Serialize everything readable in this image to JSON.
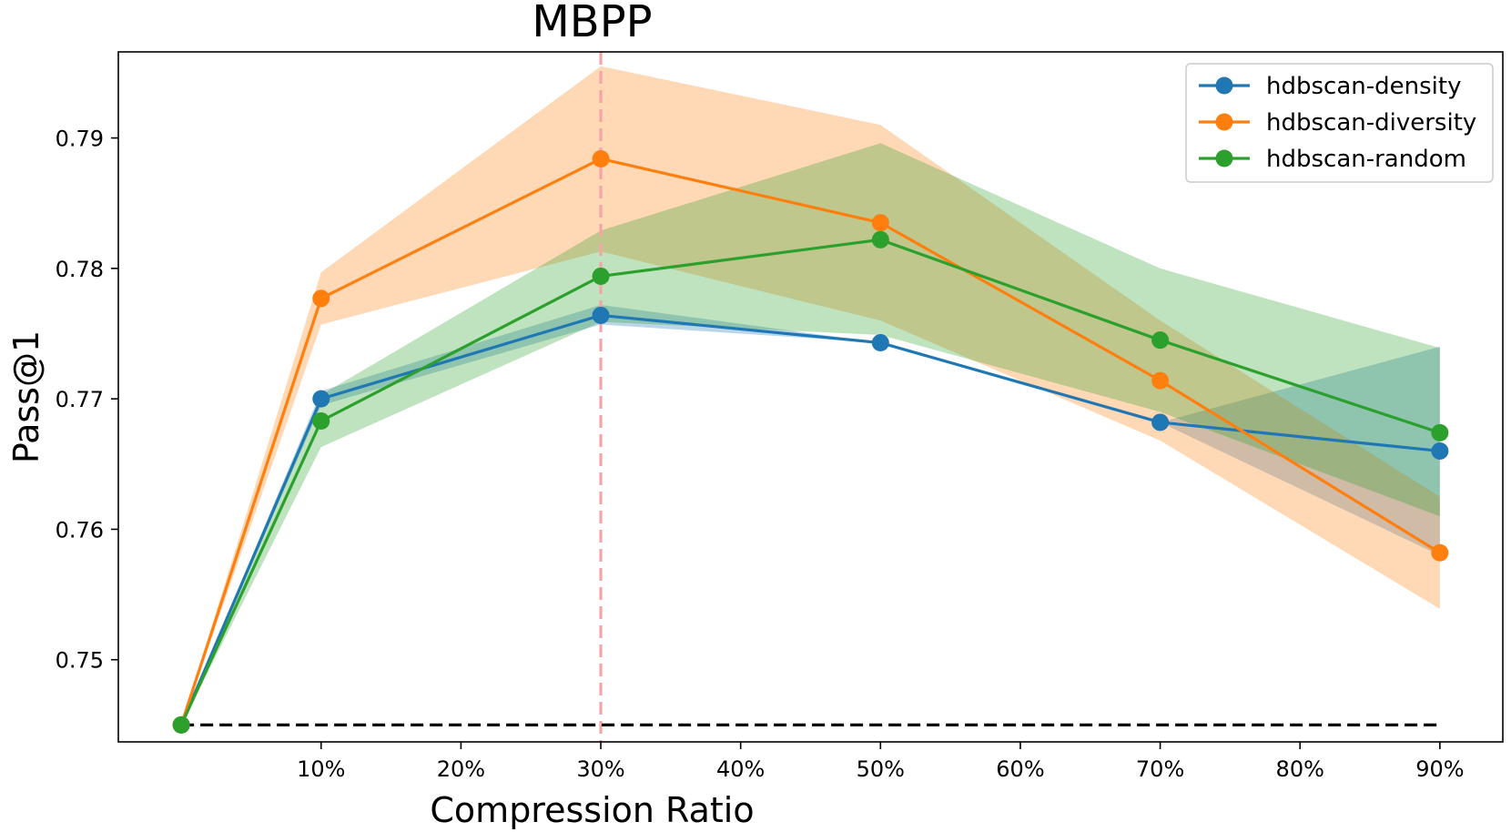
{
  "chart_data": {
    "type": "line",
    "title": "MBPP",
    "xlabel": "Compression Ratio",
    "ylabel": "Pass@1",
    "x": [
      0,
      10,
      30,
      50,
      70,
      90
    ],
    "xlim": [
      -4.5,
      94.5
    ],
    "ylim": [
      0.7437,
      0.7966
    ],
    "x_ticks": [
      {
        "value": 10,
        "label": "10%"
      },
      {
        "value": 20,
        "label": "20%"
      },
      {
        "value": 30,
        "label": "30%"
      },
      {
        "value": 40,
        "label": "40%"
      },
      {
        "value": 50,
        "label": "50%"
      },
      {
        "value": 60,
        "label": "60%"
      },
      {
        "value": 70,
        "label": "70%"
      },
      {
        "value": 80,
        "label": "80%"
      },
      {
        "value": 90,
        "label": "90%"
      }
    ],
    "y_ticks": [
      {
        "value": 0.75,
        "label": "0.75"
      },
      {
        "value": 0.76,
        "label": "0.76"
      },
      {
        "value": 0.77,
        "label": "0.77"
      },
      {
        "value": 0.78,
        "label": "0.78"
      },
      {
        "value": 0.79,
        "label": "0.79"
      }
    ],
    "baseline": {
      "value": 0.745,
      "x_range": [
        0,
        90
      ],
      "color": "#000000",
      "style": "dashed"
    },
    "vline": {
      "value": 30,
      "color": "#f4a6a6",
      "style": "dashed"
    },
    "legend_position": "top-right",
    "series": [
      {
        "name": "hdbscan-density",
        "color": "#1f77b4",
        "values": [
          0.745,
          0.77,
          0.7764,
          0.7743,
          0.7682,
          0.766
        ],
        "lower": [
          0.745,
          0.7695,
          0.7757,
          0.7743,
          0.7682,
          0.758
        ],
        "upper": [
          0.745,
          0.7706,
          0.7772,
          0.7743,
          0.7682,
          0.774
        ]
      },
      {
        "name": "hdbscan-diversity",
        "color": "#ff7f0e",
        "values": [
          0.745,
          0.7777,
          0.7884,
          0.7835,
          0.7714,
          0.7582
        ],
        "lower": [
          0.745,
          0.7757,
          0.7813,
          0.776,
          0.7668,
          0.7539
        ],
        "upper": [
          0.745,
          0.7797,
          0.7955,
          0.791,
          0.776,
          0.7625
        ]
      },
      {
        "name": "hdbscan-random",
        "color": "#2ca02c",
        "values": [
          0.745,
          0.7683,
          0.7794,
          0.7822,
          0.7745,
          0.7674
        ],
        "lower": [
          0.745,
          0.7663,
          0.7759,
          0.7749,
          0.769,
          0.761
        ],
        "upper": [
          0.745,
          0.7703,
          0.7829,
          0.7896,
          0.78,
          0.7739
        ]
      }
    ]
  }
}
